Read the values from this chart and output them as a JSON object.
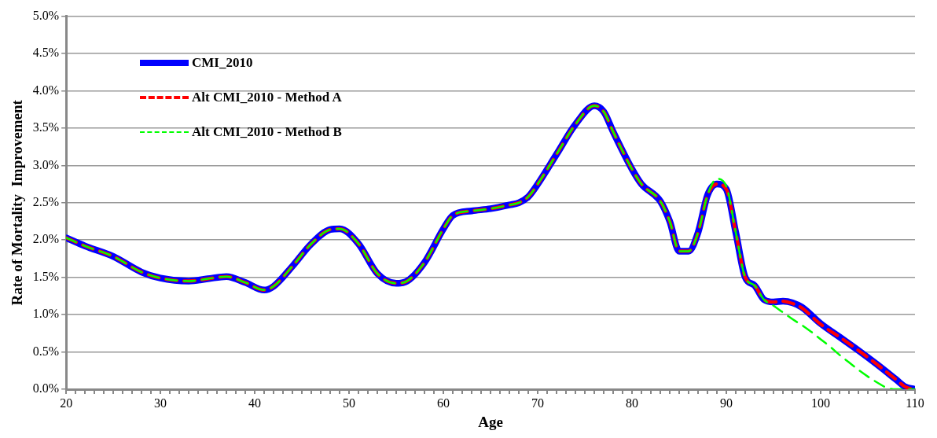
{
  "chart_data": {
    "type": "line",
    "xlabel": "Age",
    "ylabel": "Rate of Mortality  Improvement",
    "x": [
      20,
      22,
      25,
      28,
      30,
      33,
      35,
      37,
      39,
      41,
      42,
      44,
      46,
      48,
      49,
      51,
      53,
      55,
      56,
      58,
      60,
      61,
      63,
      65,
      67,
      68,
      69,
      70,
      72,
      74,
      76,
      77,
      78,
      80,
      81,
      83,
      84,
      85,
      86,
      87,
      88,
      89,
      90,
      91,
      92,
      93,
      94,
      95,
      96,
      97,
      98,
      100,
      102,
      104,
      106,
      108,
      109,
      110
    ],
    "series": [
      {
        "name": "CMI_2010",
        "color": "#0000ff",
        "line_style": "solid",
        "values": [
          2.03,
          1.92,
          1.78,
          1.57,
          1.49,
          1.45,
          1.48,
          1.51,
          1.43,
          1.33,
          1.38,
          1.65,
          1.95,
          2.14,
          2.15,
          1.95,
          1.55,
          1.42,
          1.44,
          1.7,
          2.15,
          2.33,
          2.39,
          2.42,
          2.47,
          2.5,
          2.58,
          2.75,
          3.15,
          3.55,
          3.8,
          3.72,
          3.45,
          2.95,
          2.75,
          2.52,
          2.25,
          1.85,
          1.85,
          2.1,
          2.6,
          2.75,
          2.68,
          2.1,
          1.5,
          1.39,
          1.2,
          1.17,
          1.18,
          1.16,
          1.1,
          0.88,
          0.7,
          0.52,
          0.33,
          0.13,
          0.03,
          0
        ]
      },
      {
        "name": "Alt CMI_2010 - Method A",
        "color": "#ff0000",
        "line_style": "dashed",
        "values": [
          2.03,
          1.92,
          1.78,
          1.57,
          1.49,
          1.45,
          1.48,
          1.51,
          1.43,
          1.33,
          1.38,
          1.65,
          1.95,
          2.14,
          2.15,
          1.95,
          1.55,
          1.42,
          1.44,
          1.7,
          2.15,
          2.33,
          2.39,
          2.42,
          2.47,
          2.5,
          2.58,
          2.75,
          3.15,
          3.55,
          3.8,
          3.72,
          3.45,
          2.95,
          2.75,
          2.52,
          2.25,
          1.85,
          1.85,
          2.1,
          2.6,
          2.75,
          2.68,
          2.1,
          1.5,
          1.39,
          1.2,
          1.17,
          1.18,
          1.15,
          1.09,
          0.87,
          0.7,
          0.52,
          0.33,
          0.13,
          0.03,
          0
        ]
      },
      {
        "name": "Alt CMI_2010 - Method B",
        "color": "#00ff00",
        "line_style": "dashed",
        "x": [
          20,
          22,
          25,
          28,
          30,
          33,
          35,
          37,
          39,
          41,
          42,
          44,
          46,
          48,
          49,
          51,
          53,
          55,
          56,
          58,
          60,
          61,
          63,
          65,
          67,
          68,
          69,
          70,
          72,
          74,
          76,
          77,
          78,
          80,
          81,
          83,
          84,
          85,
          86,
          87,
          88,
          89,
          90,
          91,
          92,
          93,
          94,
          95,
          96,
          97,
          98,
          99,
          100,
          101,
          102,
          103,
          104,
          105,
          106,
          107,
          108,
          109,
          110
        ],
        "values": [
          2.03,
          1.92,
          1.78,
          1.57,
          1.49,
          1.45,
          1.48,
          1.51,
          1.43,
          1.33,
          1.38,
          1.65,
          1.95,
          2.14,
          2.15,
          1.95,
          1.55,
          1.42,
          1.44,
          1.7,
          2.15,
          2.33,
          2.39,
          2.42,
          2.47,
          2.5,
          2.58,
          2.75,
          3.15,
          3.55,
          3.8,
          3.72,
          3.45,
          2.95,
          2.75,
          2.52,
          2.25,
          1.85,
          1.85,
          2.1,
          2.6,
          2.82,
          2.72,
          2.1,
          1.5,
          1.39,
          1.2,
          1.12,
          1.03,
          0.94,
          0.86,
          0.77,
          0.67,
          0.57,
          0.46,
          0.36,
          0.26,
          0.17,
          0.09,
          0.02,
          0,
          0,
          0
        ]
      }
    ],
    "xlim": [
      20,
      110
    ],
    "xticks": [
      20,
      {
        "value": 21,
        "label": null
      },
      {
        "value": 22,
        "label": null
      },
      {
        "value": 23,
        "label": null
      },
      {
        "value": 24,
        "label": null
      },
      {
        "value": 25,
        "label": null
      },
      {
        "value": 26,
        "label": null
      },
      {
        "value": 27,
        "label": null
      },
      {
        "value": 28,
        "label": null
      },
      {
        "value": 29,
        "label": null
      },
      30,
      {
        "value": 31,
        "label": null
      },
      {
        "value": 32,
        "label": null
      },
      {
        "value": 33,
        "label": null
      },
      {
        "value": 34,
        "label": null
      },
      {
        "value": 35,
        "label": null
      },
      {
        "value": 36,
        "label": null
      },
      {
        "value": 37,
        "label": null
      },
      {
        "value": 38,
        "label": null
      },
      {
        "value": 39,
        "label": null
      },
      40,
      {
        "value": 41,
        "label": null
      },
      {
        "value": 42,
        "label": null
      },
      {
        "value": 43,
        "label": null
      },
      {
        "value": 44,
        "label": null
      },
      {
        "value": 45,
        "label": null
      },
      {
        "value": 46,
        "label": null
      },
      {
        "value": 47,
        "label": null
      },
      {
        "value": 48,
        "label": null
      },
      {
        "value": 49,
        "label": null
      },
      50,
      {
        "value": 51,
        "label": null
      },
      {
        "value": 52,
        "label": null
      },
      {
        "value": 53,
        "label": null
      },
      {
        "value": 54,
        "label": null
      },
      {
        "value": 55,
        "label": null
      },
      {
        "value": 56,
        "label": null
      },
      {
        "value": 57,
        "label": null
      },
      {
        "value": 58,
        "label": null
      },
      {
        "value": 59,
        "label": null
      },
      60,
      {
        "value": 61,
        "label": null
      },
      {
        "value": 62,
        "label": null
      },
      {
        "value": 63,
        "label": null
      },
      {
        "value": 64,
        "label": null
      },
      {
        "value": 65,
        "label": null
      },
      {
        "value": 66,
        "label": null
      },
      {
        "value": 67,
        "label": null
      },
      {
        "value": 68,
        "label": null
      },
      {
        "value": 69,
        "label": null
      },
      70,
      {
        "value": 71,
        "label": null
      },
      {
        "value": 72,
        "label": null
      },
      {
        "value": 73,
        "label": null
      },
      {
        "value": 74,
        "label": null
      },
      {
        "value": 75,
        "label": null
      },
      {
        "value": 76,
        "label": null
      },
      {
        "value": 77,
        "label": null
      },
      {
        "value": 78,
        "label": null
      },
      {
        "value": 79,
        "label": null
      },
      80,
      {
        "value": 81,
        "label": null
      },
      {
        "value": 82,
        "label": null
      },
      {
        "value": 83,
        "label": null
      },
      {
        "value": 84,
        "label": null
      },
      {
        "value": 85,
        "label": null
      },
      {
        "value": 86,
        "label": null
      },
      {
        "value": 87,
        "label": null
      },
      {
        "value": 88,
        "label": null
      },
      {
        "value": 89,
        "label": null
      },
      90,
      {
        "value": 91,
        "label": null
      },
      {
        "value": 92,
        "label": null
      },
      {
        "value": 93,
        "label": null
      },
      {
        "value": 94,
        "label": null
      },
      {
        "value": 95,
        "label": null
      },
      {
        "value": 96,
        "label": null
      },
      {
        "value": 97,
        "label": null
      },
      {
        "value": 98,
        "label": null
      },
      {
        "value": 99,
        "label": null
      },
      100,
      {
        "value": 101,
        "label": null
      },
      {
        "value": 102,
        "label": null
      },
      {
        "value": 103,
        "label": null
      },
      {
        "value": 104,
        "label": null
      },
      {
        "value": 105,
        "label": null
      },
      {
        "value": 106,
        "label": null
      },
      {
        "value": 107,
        "label": null
      },
      {
        "value": 108,
        "label": null
      },
      {
        "value": 109,
        "label": null
      },
      110
    ],
    "ylim": [
      0,
      5
    ],
    "yticks": [
      {
        "value": 0,
        "label": "0.0%"
      },
      {
        "value": 0.5,
        "label": "0.5%"
      },
      {
        "value": 1,
        "label": "1.0%"
      },
      {
        "value": 1.5,
        "label": "1.5%"
      },
      {
        "value": 2,
        "label": "2.0%"
      },
      {
        "value": 2.5,
        "label": "2.5%"
      },
      {
        "value": 3,
        "label": "3.0%"
      },
      {
        "value": 3.5,
        "label": "3.5%"
      },
      {
        "value": 4,
        "label": "4.0%"
      },
      {
        "value": 4.5,
        "label": "4.5%"
      },
      {
        "value": 5,
        "label": "5.0%"
      }
    ],
    "grid": "y",
    "legend": "top left",
    "marker": "none"
  }
}
